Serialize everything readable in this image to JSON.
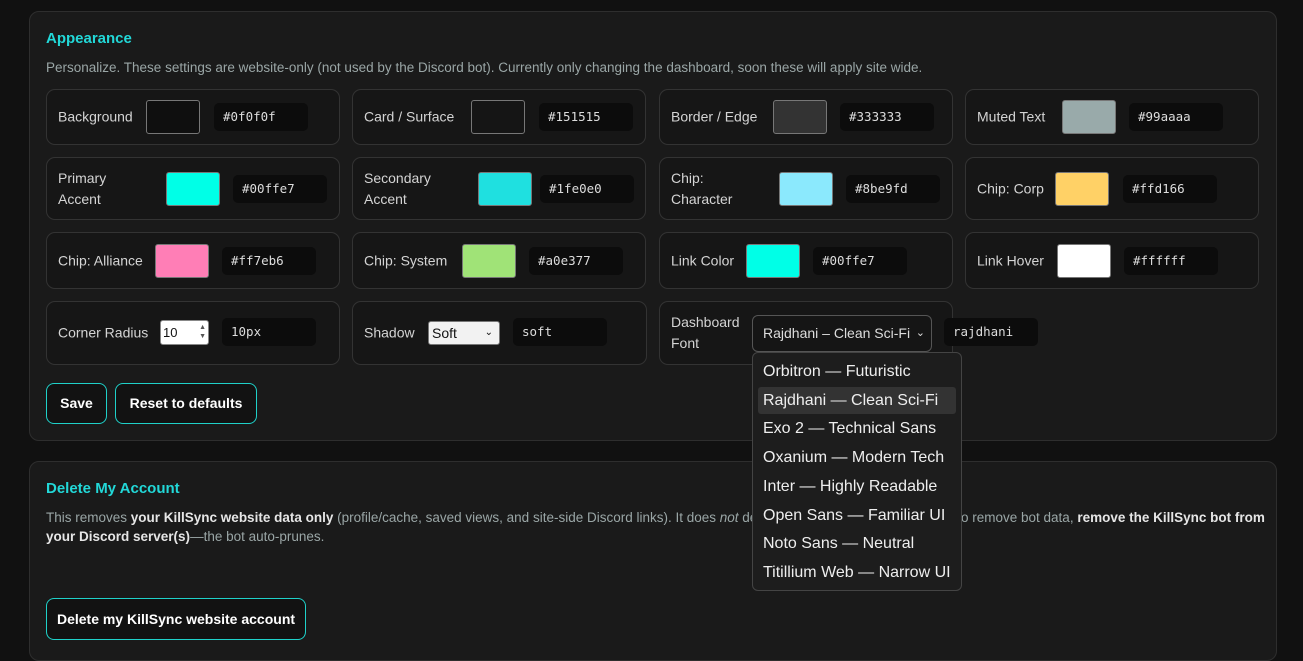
{
  "appearance": {
    "title": "Appearance",
    "description": "Personalize. These settings are website-only (not used by the Discord bot). Currently only changing the dashboard, soon these will apply site wide.",
    "fields": [
      {
        "label": "Background",
        "value": "#0f0f0f"
      },
      {
        "label": "Card / Surface",
        "value": "#151515"
      },
      {
        "label": "Border / Edge",
        "value": "#333333"
      },
      {
        "label": "Muted Text",
        "value": "#99aaaa"
      },
      {
        "label": "Primary Accent",
        "value": "#00ffe7"
      },
      {
        "label": "Secondary Accent",
        "value": "#1fe0e0"
      },
      {
        "label": "Chip: Character",
        "value": "#8be9fd"
      },
      {
        "label": "Chip: Corp",
        "value": "#ffd166"
      },
      {
        "label": "Chip: Alliance",
        "value": "#ff7eb6"
      },
      {
        "label": "Chip: System",
        "value": "#a0e377"
      },
      {
        "label": "Link Color",
        "value": "#00ffe7"
      },
      {
        "label": "Link Hover",
        "value": "#ffffff"
      }
    ],
    "corner_radius": {
      "label": "Corner Radius",
      "number": "10",
      "value": "10px"
    },
    "shadow": {
      "label": "Shadow",
      "selected": "Soft",
      "value": "soft"
    },
    "dashboard_font": {
      "label": "Dashboard Font",
      "selected": "Rajdhani – Clean Sci-Fi",
      "value": "rajdhani",
      "options": [
        "Orbitron — Futuristic",
        "Rajdhani — Clean Sci-Fi",
        "Exo 2 — Technical Sans",
        "Oxanium — Modern Tech",
        "Inter — Highly Readable",
        "Open Sans — Familiar UI",
        "Noto Sans — Neutral",
        "Titillium Web — Narrow UI"
      ],
      "highlighted": 1
    },
    "buttons": {
      "save": "Save",
      "reset": "Reset to defaults"
    }
  },
  "delete_account": {
    "title": "Delete My Account",
    "line1_parts": [
      "This removes ",
      "your KillSync website data only",
      " (profile/cache, saved views, and site-side Discord links). It does ",
      "not",
      " delete"
    ],
    "line1_tail_parts": [
      "o remove bot data, ",
      "remove the KillSync bot from"
    ],
    "line2_parts": [
      "your Discord server(s)",
      "—the bot auto-prunes."
    ],
    "button": "Delete my KillSync website account"
  }
}
